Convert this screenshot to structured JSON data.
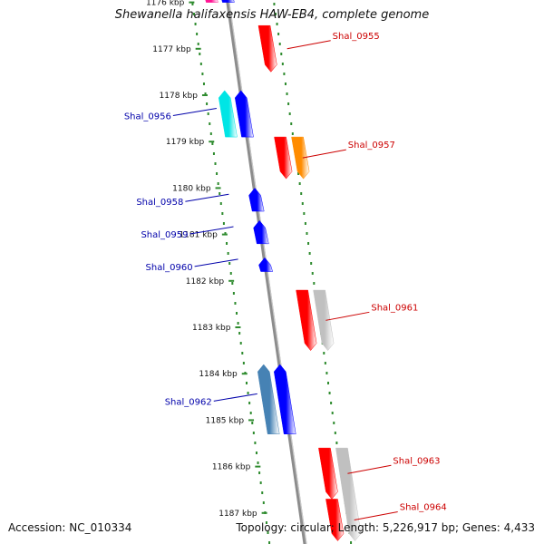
{
  "title": "Shewanella halifaxensis HAW-EB4, complete genome",
  "footer": {
    "accession": "Accession: NC_010334",
    "summary": "Topology: circular; Length: 5,226,917 bp; Genes: 4,433"
  },
  "colors": {
    "backbone": "#8c8c8c",
    "scale_dots": "#2e8b2e",
    "strand_plus_label": "#cc0000",
    "strand_minus_label": "#0000aa",
    "red": "#ff0000",
    "blue": "#0000ff",
    "orange": "#ff8c00",
    "cyan": "#00e5e5",
    "grey": "#c0c0c0",
    "steelblue": "#4682b4",
    "magenta": "#ff1493"
  },
  "scale_ticks": [
    {
      "kbp": 1176,
      "label": "1176 kbp"
    },
    {
      "kbp": 1177,
      "label": "1177 kbp"
    },
    {
      "kbp": 1178,
      "label": "1178 kbp"
    },
    {
      "kbp": 1179,
      "label": "1179 kbp"
    },
    {
      "kbp": 1180,
      "label": "1180 kbp"
    },
    {
      "kbp": 1181,
      "label": "1181 kbp"
    },
    {
      "kbp": 1182,
      "label": "1182 kbp"
    },
    {
      "kbp": 1183,
      "label": "1183 kbp"
    },
    {
      "kbp": 1184,
      "label": "1184 kbp"
    },
    {
      "kbp": 1185,
      "label": "1185 kbp"
    },
    {
      "kbp": 1186,
      "label": "1186 kbp"
    },
    {
      "kbp": 1187,
      "label": "1187 kbp"
    }
  ],
  "genes": [
    {
      "strand": "minus",
      "lane": 1,
      "start_kbp": 1175.6,
      "end_kbp": 1176.0,
      "color": "magenta"
    },
    {
      "strand": "minus",
      "lane": 2,
      "start_kbp": 1175.6,
      "end_kbp": 1176.0,
      "color": "blue"
    },
    {
      "strand": "plus",
      "lane": 1,
      "start_kbp": 1176.5,
      "end_kbp": 1177.5,
      "color": "red",
      "label": "Shal_0955"
    },
    {
      "strand": "minus",
      "lane": 1,
      "start_kbp": 1177.9,
      "end_kbp": 1178.9,
      "color": "cyan",
      "label": "Shal_0956"
    },
    {
      "strand": "minus",
      "lane": 2,
      "start_kbp": 1177.9,
      "end_kbp": 1178.9,
      "color": "blue"
    },
    {
      "strand": "plus",
      "lane": 1,
      "start_kbp": 1178.9,
      "end_kbp": 1179.8,
      "color": "red",
      "label": "Shal_0957"
    },
    {
      "strand": "plus",
      "lane": 2,
      "start_kbp": 1178.9,
      "end_kbp": 1179.8,
      "color": "orange"
    },
    {
      "strand": "minus",
      "lane": 2,
      "start_kbp": 1180.0,
      "end_kbp": 1180.5,
      "color": "blue",
      "label": "Shal_0958"
    },
    {
      "strand": "minus",
      "lane": 2,
      "start_kbp": 1180.7,
      "end_kbp": 1181.2,
      "color": "blue",
      "label": "Shal_0959"
    },
    {
      "strand": "minus",
      "lane": 2,
      "start_kbp": 1181.5,
      "end_kbp": 1181.8,
      "color": "blue",
      "label": "Shal_0960"
    },
    {
      "strand": "plus",
      "lane": 1,
      "start_kbp": 1182.2,
      "end_kbp": 1183.5,
      "color": "red",
      "label": "Shal_0961"
    },
    {
      "strand": "plus",
      "lane": 2,
      "start_kbp": 1182.2,
      "end_kbp": 1183.5,
      "color": "grey"
    },
    {
      "strand": "minus",
      "lane": 1,
      "start_kbp": 1183.8,
      "end_kbp": 1185.3,
      "color": "steelblue",
      "label": "Shal_0962"
    },
    {
      "strand": "minus",
      "lane": 2,
      "start_kbp": 1183.8,
      "end_kbp": 1185.3,
      "color": "blue"
    },
    {
      "strand": "plus",
      "lane": 1,
      "start_kbp": 1185.6,
      "end_kbp": 1186.7,
      "color": "red",
      "label": "Shal_0963"
    },
    {
      "strand": "plus",
      "lane": 2,
      "start_kbp": 1185.6,
      "end_kbp": 1187.6,
      "color": "grey"
    },
    {
      "strand": "plus",
      "lane": 1,
      "start_kbp": 1186.7,
      "end_kbp": 1187.6,
      "color": "red",
      "label": "Shal_0964"
    }
  ]
}
